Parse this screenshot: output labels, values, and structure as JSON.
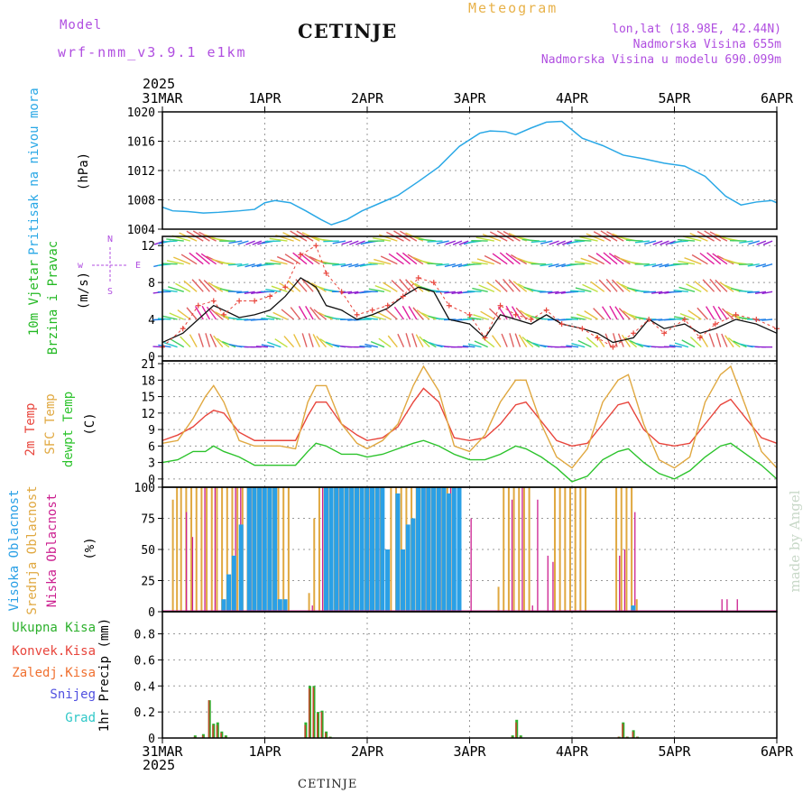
{
  "header": {
    "model_label": "Model",
    "model_name": "wrf-nmm_v3.9.1 e1km",
    "station": "CETINJE",
    "title": "Meteogram",
    "lonlat": "lon,lat (18.98E, 42.44N)",
    "altitude": "Nadmorska Visina 655m",
    "model_altitude": "Nadmorska Visina u modelu 690.099m"
  },
  "footer": {
    "station": "CETINJE"
  },
  "credit": "made by Angel",
  "x_axis": {
    "year_top": "2025",
    "year_bottom": "2025",
    "ticks": [
      "31MAR",
      "1APR",
      "2APR",
      "3APR",
      "4APR",
      "5APR",
      "6APR"
    ]
  },
  "colors": {
    "pressure": "#2aa8e6",
    "temp2m": "#e8453c",
    "sfc": "#e0a840",
    "dew": "#2cc32c",
    "high": "#2aa0e6",
    "mid": "#e0a840",
    "low": "#cc2090",
    "wind_speed": "#111111",
    "gust": "#e8453c"
  },
  "chart_data": [
    {
      "type": "line",
      "panel": "pressure",
      "ylabel_lines": [
        "Pritisak na nivou mora",
        "(hPa)"
      ],
      "ylim": [
        1004,
        1020
      ],
      "yticks": [
        1004,
        1008,
        1012,
        1016,
        1020
      ],
      "x_days": [
        0,
        0.1,
        0.25,
        0.4,
        0.55,
        0.75,
        0.9,
        1.0,
        1.1,
        1.25,
        1.4,
        1.55,
        1.65,
        1.8,
        1.95,
        2.1,
        2.3,
        2.5,
        2.7,
        2.9,
        3.1,
        3.2,
        3.35,
        3.45,
        3.6,
        3.75,
        3.9,
        4.1,
        4.3,
        4.5,
        4.7,
        4.9,
        5.1,
        5.3,
        5.5,
        5.65,
        5.8,
        5.95,
        6.0
      ],
      "series": [
        {
          "values": [
            1007,
            1006.5,
            1006.4,
            1006.2,
            1006.3,
            1006.5,
            1006.7,
            1007.6,
            1007.9,
            1007.6,
            1006.5,
            1005.3,
            1004.6,
            1005.3,
            1006.5,
            1007.4,
            1008.6,
            1010.5,
            1012.5,
            1015.3,
            1017.1,
            1017.4,
            1017.3,
            1016.9,
            1017.8,
            1018.6,
            1018.7,
            1016.4,
            1015.4,
            1014.1,
            1013.6,
            1013.0,
            1012.6,
            1011.2,
            1008.5,
            1007.3,
            1007.7,
            1007.9,
            1007.6
          ]
        }
      ]
    },
    {
      "type": "line",
      "panel": "wind",
      "ylabel_lines": [
        "10m Vjetar",
        "Brzina i Pravac",
        "(m/s)"
      ],
      "compass": [
        "N",
        "w",
        "E",
        "S"
      ],
      "ylim": [
        -0.5,
        13
      ],
      "yticks": [
        0,
        4,
        8,
        12
      ],
      "x_days": [
        0,
        0.2,
        0.35,
        0.5,
        0.6,
        0.75,
        0.9,
        1.05,
        1.2,
        1.35,
        1.5,
        1.6,
        1.75,
        1.9,
        2.05,
        2.2,
        2.35,
        2.5,
        2.65,
        2.8,
        3.0,
        3.15,
        3.3,
        3.45,
        3.6,
        3.75,
        3.9,
        4.1,
        4.25,
        4.4,
        4.6,
        4.75,
        4.9,
        5.1,
        5.25,
        5.4,
        5.6,
        5.8,
        6.0
      ],
      "series": [
        {
          "values": [
            1.5,
            2.5,
            4.0,
            5.5,
            5.0,
            4.2,
            4.5,
            5.0,
            6.5,
            8.5,
            7.5,
            5.5,
            5.0,
            4.0,
            4.5,
            5.2,
            6.5,
            7.5,
            7.0,
            4.0,
            3.5,
            2.0,
            4.5,
            4.0,
            3.5,
            4.5,
            3.5,
            3.0,
            2.5,
            1.5,
            2.0,
            4.0,
            3.0,
            3.5,
            2.5,
            3.0,
            4.0,
            3.5,
            2.5
          ]
        },
        {
          "values": [
            1.0,
            3.0,
            5.5,
            6.0,
            4.5,
            6.0,
            6.0,
            6.5,
            7.5,
            11.0,
            12.0,
            9.0,
            7.0,
            4.5,
            5.0,
            5.5,
            6.5,
            8.5,
            8.0,
            5.5,
            4.5,
            2.0,
            5.5,
            4.5,
            4.0,
            5.0,
            3.5,
            3.0,
            2.0,
            1.0,
            2.5,
            4.0,
            2.5,
            4.0,
            2.0,
            3.5,
            4.5,
            4.0,
            3.0
          ]
        }
      ]
    },
    {
      "type": "line",
      "panel": "temperature",
      "ylabel_lines": [
        "2m Temp",
        "SFC Temp",
        "dewpt Temp",
        "(C)"
      ],
      "ylim": [
        -1.5,
        21.5
      ],
      "yticks": [
        0,
        3,
        6,
        9,
        12,
        15,
        18,
        21
      ],
      "x_days": [
        0,
        0.15,
        0.3,
        0.42,
        0.5,
        0.6,
        0.75,
        0.9,
        1.0,
        1.15,
        1.3,
        1.42,
        1.5,
        1.6,
        1.75,
        1.9,
        2.0,
        2.15,
        2.3,
        2.45,
        2.55,
        2.7,
        2.85,
        3.0,
        3.15,
        3.3,
        3.45,
        3.55,
        3.7,
        3.85,
        4.0,
        4.15,
        4.3,
        4.45,
        4.55,
        4.7,
        4.85,
        5.0,
        5.15,
        5.3,
        5.45,
        5.55,
        5.7,
        5.85,
        6.0
      ],
      "series": [
        {
          "name": "2m Temp",
          "values": [
            7,
            8,
            9.5,
            11.5,
            12.5,
            12,
            8.5,
            7,
            7,
            7,
            7,
            11.5,
            14,
            14,
            10,
            8,
            7,
            7.5,
            9.5,
            14,
            16.5,
            14,
            7.5,
            7,
            7.5,
            10,
            13.5,
            14,
            10.5,
            7,
            6,
            6.5,
            10,
            13.5,
            14,
            9,
            6.5,
            6,
            6.5,
            10,
            13.5,
            14.5,
            11,
            7.5,
            6.5
          ]
        },
        {
          "name": "SFC Temp",
          "values": [
            6.5,
            7,
            11,
            15,
            17,
            14,
            7,
            6,
            6,
            6,
            5.5,
            14,
            17,
            17,
            10,
            6.5,
            5.5,
            7,
            10,
            17,
            20.5,
            16,
            6,
            5,
            8,
            14,
            18,
            18,
            10,
            4,
            2,
            5.5,
            14,
            18,
            19,
            10,
            3.5,
            2,
            4,
            14,
            19,
            20.5,
            13,
            5,
            2
          ]
        },
        {
          "name": "dewpt Temp",
          "values": [
            3,
            3.5,
            5,
            5,
            6,
            5,
            4,
            2.5,
            2.5,
            2.5,
            2.5,
            5,
            6.5,
            6,
            4.5,
            4.5,
            4,
            4.5,
            5.5,
            6.5,
            7,
            6,
            4.5,
            3.5,
            3.5,
            4.5,
            6,
            5.5,
            4,
            2,
            -0.5,
            0.5,
            3.5,
            5,
            5.5,
            3,
            1,
            0,
            1.5,
            4,
            6,
            6.5,
            4.5,
            2.5,
            0
          ]
        }
      ]
    },
    {
      "type": "bar",
      "panel": "cloud",
      "ylabel_lines": [
        "Visoka Oblacnost",
        "Srednja Oblacnost",
        "Niska Oblacnost",
        "(%)"
      ],
      "ylim": [
        0,
        100
      ],
      "yticks": [
        0,
        25,
        50,
        75,
        100
      ],
      "series": [
        {
          "name": "Visoka Oblacnost",
          "x_days": [
            0.55,
            0.6,
            0.65,
            0.72,
            0.8,
            0.85,
            0.9,
            0.95,
            1.0,
            1.05,
            1.1,
            1.15,
            1.55,
            1.6,
            1.65,
            1.7,
            1.75,
            1.8,
            1.85,
            1.9,
            1.95,
            2.0,
            2.05,
            2.1,
            2.15,
            2.2,
            2.25,
            2.3,
            2.35,
            2.4,
            2.45,
            2.5,
            2.55,
            2.6,
            2.65,
            2.7,
            2.75,
            2.8,
            2.85,
            4.55
          ],
          "values": [
            10,
            30,
            45,
            70,
            100,
            100,
            100,
            100,
            100,
            100,
            10,
            10,
            100,
            100,
            100,
            100,
            100,
            100,
            100,
            100,
            100,
            100,
            100,
            100,
            50,
            0,
            95,
            50,
            70,
            75,
            100,
            100,
            100,
            100,
            100,
            100,
            95,
            100,
            100,
            5
          ]
        },
        {
          "name": "Srednja Oblacnost",
          "x_days": [
            0.12,
            0.16,
            0.2,
            0.25,
            0.3,
            0.35,
            0.4,
            0.45,
            0.5,
            0.55,
            0.6,
            0.65,
            0.7,
            0.75,
            0.8,
            0.85,
            0.9,
            0.95,
            1.0,
            1.05,
            1.1,
            1.15,
            1.2,
            1.25,
            1.45,
            1.5,
            1.55,
            1.6,
            1.65,
            1.7,
            1.75,
            1.8,
            1.85,
            1.9,
            1.95,
            2.0,
            2.05,
            2.1,
            2.15,
            2.25,
            2.3,
            2.35,
            2.4,
            2.45,
            2.5,
            2.55,
            2.6,
            2.65,
            2.7,
            2.75,
            2.8,
            2.85,
            3.3,
            3.35,
            3.4,
            3.45,
            3.5,
            3.55,
            3.6,
            3.85,
            3.9,
            3.95,
            4.0,
            4.05,
            4.1,
            4.15,
            4.45,
            4.5,
            4.55,
            4.6,
            4.65
          ],
          "values": [
            90,
            100,
            100,
            100,
            100,
            100,
            100,
            100,
            100,
            100,
            100,
            100,
            100,
            100,
            100,
            100,
            100,
            100,
            100,
            100,
            100,
            100,
            100,
            100,
            15,
            75,
            100,
            100,
            100,
            100,
            100,
            100,
            100,
            100,
            100,
            100,
            100,
            100,
            100,
            100,
            100,
            100,
            100,
            100,
            100,
            100,
            100,
            100,
            100,
            100,
            100,
            100,
            20,
            100,
            100,
            100,
            100,
            100,
            100,
            100,
            100,
            100,
            100,
            100,
            100,
            100,
            100,
            100,
            100,
            100,
            10
          ]
        },
        {
          "name": "Niska Oblacnost",
          "x_days": [
            0.22,
            0.28,
            0.4,
            0.5,
            0.7,
            0.75,
            0.85,
            0.95,
            1.05,
            1.45,
            1.55,
            1.6,
            1.7,
            1.8,
            1.9,
            2.0,
            2.1,
            2.55,
            2.6,
            2.7,
            2.8,
            3.0,
            3.4,
            3.5,
            3.6,
            3.65,
            3.75,
            3.8,
            4.45,
            4.5,
            4.6,
            5.45,
            5.5,
            5.6
          ],
          "values": [
            80,
            60,
            100,
            100,
            100,
            100,
            100,
            100,
            100,
            5,
            100,
            100,
            100,
            100,
            100,
            100,
            100,
            100,
            100,
            100,
            100,
            75,
            90,
            100,
            5,
            90,
            45,
            40,
            45,
            50,
            80,
            10,
            10,
            10
          ]
        }
      ]
    },
    {
      "type": "bar",
      "panel": "precip",
      "ylabel_lines": [
        "1hr Precip (mm)"
      ],
      "legend": [
        "Ukupna Kisa",
        "Konvek.Kisa",
        "Zaledj.Kisa",
        "Snijeg",
        "Grad"
      ],
      "ylim": [
        0,
        0.97
      ],
      "yticks": [
        0,
        0.2,
        0.4,
        0.6,
        0.8
      ],
      "x_days": [
        0.32,
        0.4,
        0.46,
        0.5,
        0.54,
        0.58,
        0.62,
        1.4,
        1.44,
        1.48,
        1.52,
        1.56,
        1.6,
        1.64,
        3.42,
        3.46,
        3.5,
        4.46,
        4.5,
        4.54,
        4.6,
        4.64
      ],
      "series": [
        {
          "name": "Ukupna Kisa",
          "values": [
            0.02,
            0.03,
            0.29,
            0.11,
            0.12,
            0.05,
            0.02,
            0.12,
            0.4,
            0.4,
            0.2,
            0.21,
            0.05,
            0.01,
            0.02,
            0.14,
            0.02,
            0.01,
            0.12,
            0.01,
            0.06,
            0.01
          ]
        },
        {
          "name": "Konvek.Kisa",
          "values": [
            0.01,
            0.02,
            0.29,
            0.1,
            0.1,
            0.04,
            0.01,
            0.1,
            0.38,
            0.39,
            0.19,
            0.2,
            0.04,
            0.01,
            0.01,
            0.12,
            0.01,
            0.01,
            0.11,
            0.01,
            0.05,
            0.01
          ]
        }
      ]
    }
  ]
}
